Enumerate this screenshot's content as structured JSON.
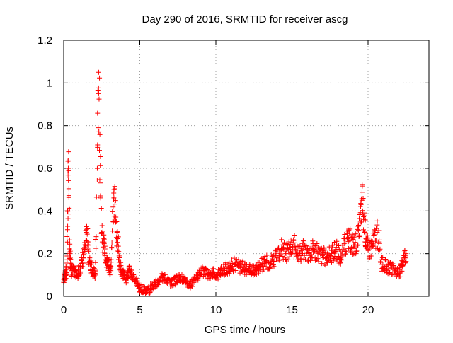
{
  "chart_data": {
    "type": "scatter",
    "title": "Day 290 of 2016, SRMTID for receiver ascg",
    "xlabel": "GPS time / hours",
    "ylabel": "SRMTID / TECUs",
    "xlim": [
      0,
      24
    ],
    "ylim": [
      0,
      1.2
    ],
    "grid": true,
    "marker": "+",
    "x_ticks": [
      0,
      5,
      10,
      15,
      20
    ],
    "x_tick_labels": [
      "0",
      "5",
      "10",
      "15",
      "20"
    ],
    "y_ticks": [
      0,
      0.2,
      0.4,
      0.6,
      0.8,
      1.0,
      1.2
    ],
    "y_tick_labels": [
      "0",
      "0.2",
      "0.4",
      "0.6",
      "0.8",
      "1",
      "1.2"
    ],
    "series": [
      {
        "name": "SRMTID",
        "color": "#ff0000",
        "anchors": [
          [
            0.0,
            0.08
          ],
          [
            0.1,
            0.1
          ],
          [
            0.2,
            0.14
          ],
          [
            0.3,
            0.6
          ],
          [
            0.4,
            0.2
          ],
          [
            0.5,
            0.12
          ],
          [
            0.7,
            0.12
          ],
          [
            0.9,
            0.1
          ],
          [
            1.1,
            0.14
          ],
          [
            1.3,
            0.18
          ],
          [
            1.5,
            0.3
          ],
          [
            1.7,
            0.16
          ],
          [
            1.9,
            0.12
          ],
          [
            2.1,
            0.1
          ],
          [
            2.3,
            0.95
          ],
          [
            2.5,
            0.3
          ],
          [
            2.7,
            0.2
          ],
          [
            2.9,
            0.16
          ],
          [
            3.1,
            0.12
          ],
          [
            3.3,
            0.5
          ],
          [
            3.5,
            0.3
          ],
          [
            3.7,
            0.14
          ],
          [
            3.9,
            0.1
          ],
          [
            4.1,
            0.08
          ],
          [
            4.3,
            0.12
          ],
          [
            4.5,
            0.1
          ],
          [
            4.8,
            0.06
          ],
          [
            5.0,
            0.04
          ],
          [
            5.3,
            0.03
          ],
          [
            5.6,
            0.03
          ],
          [
            5.9,
            0.05
          ],
          [
            6.2,
            0.07
          ],
          [
            6.5,
            0.09
          ],
          [
            6.8,
            0.08
          ],
          [
            7.1,
            0.06
          ],
          [
            7.4,
            0.08
          ],
          [
            7.7,
            0.09
          ],
          [
            8.0,
            0.07
          ],
          [
            8.3,
            0.05
          ],
          [
            8.6,
            0.08
          ],
          [
            8.9,
            0.1
          ],
          [
            9.2,
            0.12
          ],
          [
            9.5,
            0.1
          ],
          [
            9.8,
            0.11
          ],
          [
            10.1,
            0.1
          ],
          [
            10.4,
            0.12
          ],
          [
            10.7,
            0.13
          ],
          [
            11.0,
            0.14
          ],
          [
            11.3,
            0.15
          ],
          [
            11.6,
            0.14
          ],
          [
            11.9,
            0.13
          ],
          [
            12.2,
            0.13
          ],
          [
            12.5,
            0.12
          ],
          [
            12.8,
            0.14
          ],
          [
            13.1,
            0.15
          ],
          [
            13.4,
            0.16
          ],
          [
            13.7,
            0.17
          ],
          [
            14.0,
            0.18
          ],
          [
            14.3,
            0.22
          ],
          [
            14.6,
            0.2
          ],
          [
            14.9,
            0.22
          ],
          [
            15.2,
            0.24
          ],
          [
            15.5,
            0.2
          ],
          [
            15.8,
            0.22
          ],
          [
            16.1,
            0.2
          ],
          [
            16.4,
            0.22
          ],
          [
            16.7,
            0.2
          ],
          [
            17.0,
            0.19
          ],
          [
            17.3,
            0.18
          ],
          [
            17.6,
            0.2
          ],
          [
            17.9,
            0.22
          ],
          [
            18.2,
            0.18
          ],
          [
            18.5,
            0.25
          ],
          [
            18.8,
            0.26
          ],
          [
            19.1,
            0.24
          ],
          [
            19.4,
            0.28
          ],
          [
            19.6,
            0.45
          ],
          [
            19.8,
            0.3
          ],
          [
            20.0,
            0.22
          ],
          [
            20.3,
            0.24
          ],
          [
            20.6,
            0.3
          ],
          [
            20.9,
            0.15
          ],
          [
            21.2,
            0.14
          ],
          [
            21.5,
            0.13
          ],
          [
            21.8,
            0.12
          ],
          [
            22.1,
            0.11
          ],
          [
            22.3,
            0.18
          ],
          [
            22.5,
            0.2
          ]
        ]
      }
    ]
  }
}
